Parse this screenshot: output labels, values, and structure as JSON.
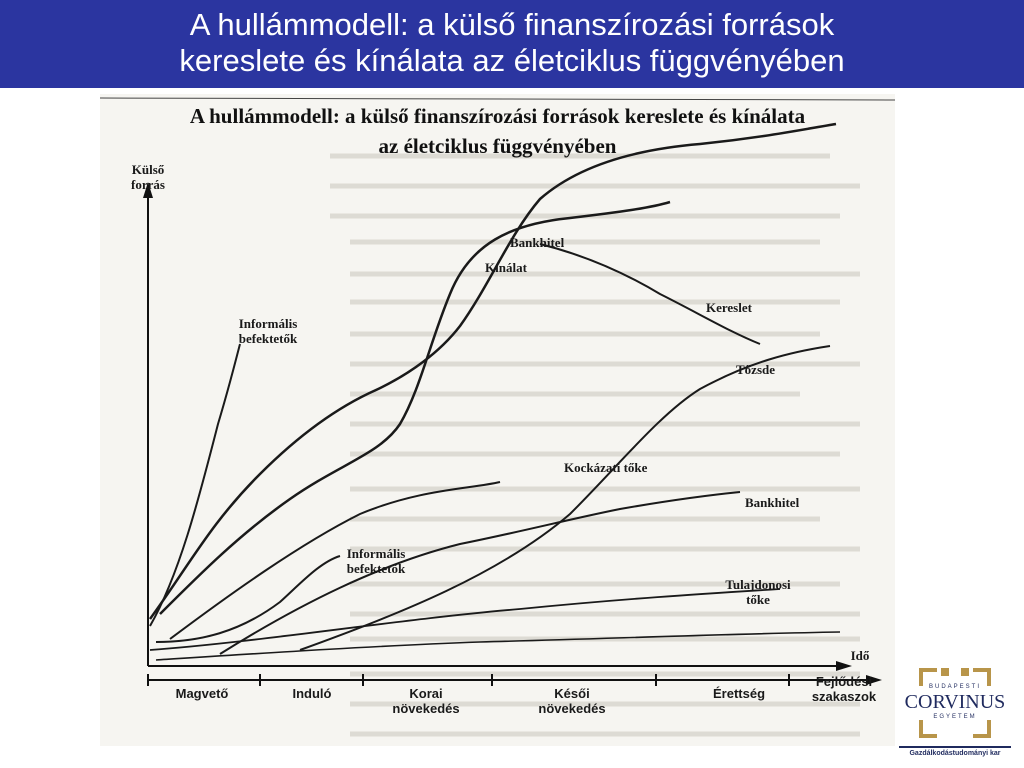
{
  "slide": {
    "title_line1": "A hullámmodell: a külső finanszírozási források",
    "title_line2": "kereslete és kínálata az életciklus függvényében"
  },
  "diagram": {
    "title_line1": "A hullámmodell: a külső finanszírozási források kereslete és kínálata",
    "title_line2": "az életciklus függvényében",
    "y_axis_label_1": "Külső",
    "y_axis_label_2": "forrás",
    "x_axis_label": "Idő",
    "curve_labels": {
      "bankhitel_top": "Bankhitel",
      "kinalat": "Kínálat",
      "kereslet": "Kereslet",
      "tozsde": "Tőzsde",
      "informalis_top_1": "Informális",
      "informalis_top_2": "befektetők",
      "kockazati_toke": "Kockázati tőke",
      "bankhitel_bottom": "Bankhitel",
      "informalis_bottom_1": "Informális",
      "informalis_bottom_2": "befektetők",
      "tulajdonosi_toke_1": "Tulajdonosi",
      "tulajdonosi_toke_2": "tőke"
    },
    "stages": {
      "s1": "Magvető",
      "s2": "Induló",
      "s3_1": "Korai",
      "s3_2": "növekedés",
      "s4_1": "Késői",
      "s4_2": "növekedés",
      "s5": "Érettség",
      "s6_1": "Fejlődési",
      "s6_2": "szakaszok"
    }
  },
  "logo": {
    "top_small": "BUDAPESTI",
    "word": "CORVINUS",
    "bottom_small": "EGYETEM",
    "faculty": "Gazdálkodástudományi kar"
  },
  "colors": {
    "title_bg": "#2b35a0",
    "title_text": "#ffffff",
    "logo_gold": "#b8954a",
    "logo_blue": "#1f2a5e"
  }
}
